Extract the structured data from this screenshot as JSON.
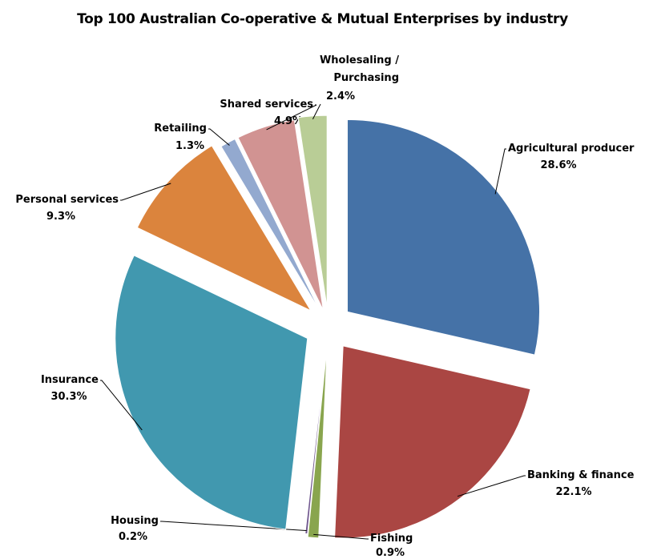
{
  "chart_data": {
    "type": "pie",
    "title": "Top 100 Australian Co-operative & Mutual Enterprises by industry",
    "exploded": true,
    "slices": [
      {
        "label": "Agricultural producer",
        "value": 28.6,
        "value_label": "28.6%",
        "color": "#4572A7"
      },
      {
        "label": "Banking & finance",
        "value": 22.1,
        "value_label": "22.1%",
        "color": "#AA4643"
      },
      {
        "label": "Fishing",
        "value": 0.9,
        "value_label": "0.9%",
        "color": "#89A54E"
      },
      {
        "label": "Housing",
        "value": 0.2,
        "value_label": "0.2%",
        "color": "#71588F"
      },
      {
        "label": "Insurance",
        "value": 30.3,
        "value_label": "30.3%",
        "color": "#4198AF"
      },
      {
        "label": "Personal services",
        "value": 9.3,
        "value_label": "9.3%",
        "color": "#DB843D"
      },
      {
        "label": "Retailing",
        "value": 1.3,
        "value_label": "1.3%",
        "color": "#93A9CF"
      },
      {
        "label": "Shared services",
        "value": 4.9,
        "value_label": "4.9%",
        "color": "#D19392"
      },
      {
        "label": "Wholesaling / Purchasing",
        "value": 2.4,
        "value_label": "2.4%",
        "color": "#B9CD96"
      }
    ]
  }
}
